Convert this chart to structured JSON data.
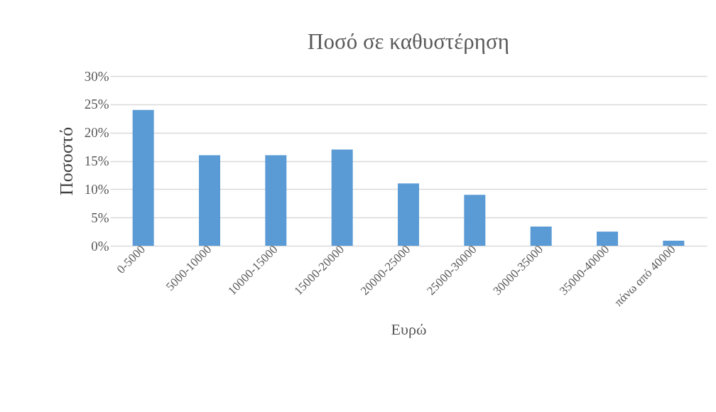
{
  "chart_data": {
    "type": "bar",
    "title": "Ποσό σε καθυστέρηση",
    "xlabel": "Ευρώ",
    "ylabel": "Ποσοστό",
    "categories": [
      "0-5000",
      "5000-10000",
      "10000-15000",
      "15000-20000",
      "20000-25000",
      "25000-30000",
      "30000-35000",
      "35000-40000",
      "πάνω από 40000"
    ],
    "values": [
      24,
      16,
      16,
      17,
      11,
      9,
      3.4,
      2.5,
      0.9
    ],
    "color": "#5b9bd5",
    "ylim": [
      0,
      30
    ],
    "yticks": [
      {
        "value": 0,
        "label": "0%"
      },
      {
        "value": 5,
        "label": "5%"
      },
      {
        "value": 10,
        "label": "10%"
      },
      {
        "value": 15,
        "label": "15%"
      },
      {
        "value": 20,
        "label": "20%"
      },
      {
        "value": 25,
        "label": "25%"
      },
      {
        "value": 30,
        "label": "30%"
      }
    ],
    "grid": "y"
  }
}
